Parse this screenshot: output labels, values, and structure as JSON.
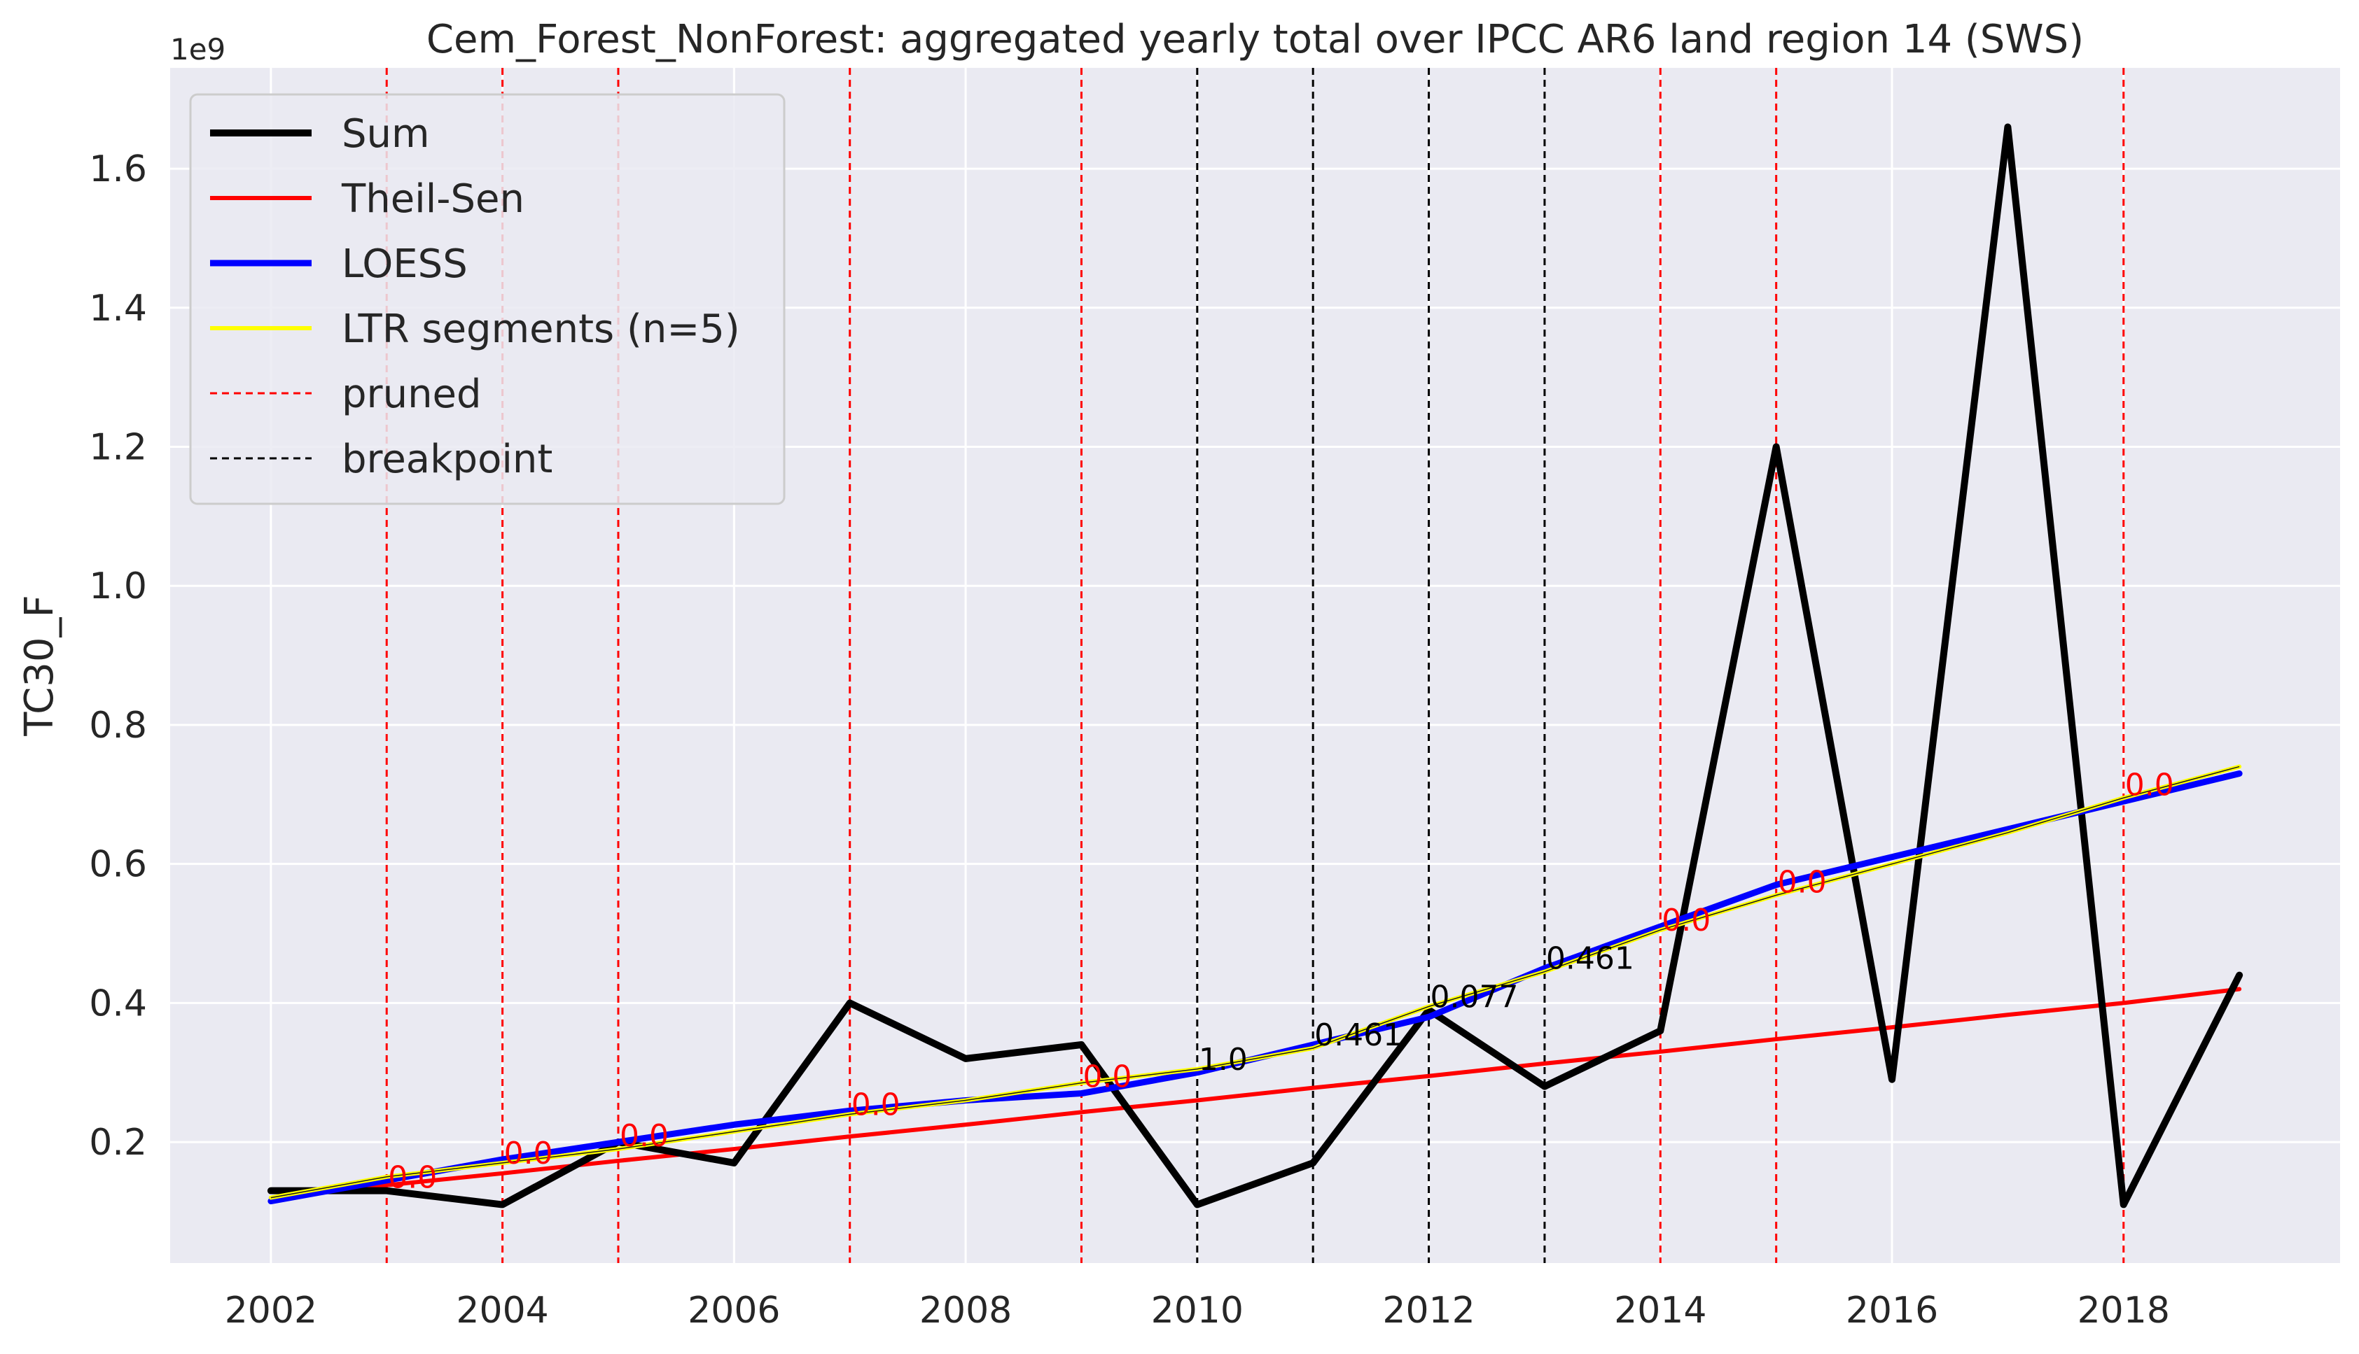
{
  "chart_data": {
    "type": "line",
    "title": "Cem_Forest_NonForest: aggregated yearly total over IPCC AR6 land region 14 (SWS)",
    "ylabel": "TC30_F",
    "xlabel": "",
    "y_offset_label": "1e9",
    "scale_factor": 1000000000.0,
    "xlim": [
      2001.13,
      2019.87
    ],
    "ylim": [
      0.026,
      1.745
    ],
    "x_ticks": [
      2002,
      2004,
      2006,
      2008,
      2010,
      2012,
      2014,
      2016,
      2018
    ],
    "x_tick_labels": [
      "2002",
      "2004",
      "2006",
      "2008",
      "2010",
      "2012",
      "2014",
      "2016",
      "2018"
    ],
    "y_ticks": [
      0.2,
      0.4,
      0.6,
      0.8,
      1.0,
      1.2,
      1.4,
      1.6
    ],
    "y_tick_labels": [
      "0.2",
      "0.4",
      "0.6",
      "0.8",
      "1.0",
      "1.2",
      "1.4",
      "1.6"
    ],
    "grid": true,
    "legend_position": "top-left",
    "colors": {
      "background": "#eaeaf2",
      "grid": "#ffffff",
      "sum": "#000000",
      "theil_sen": "#ff0000",
      "loess": "#0000ff",
      "ltr": "#ffff00",
      "pruned": "#ff0000",
      "breakpoint": "#000000"
    },
    "legend": [
      {
        "label": "Sum",
        "key": "sum",
        "style": "solid"
      },
      {
        "label": "Theil-Sen",
        "key": "theil_sen",
        "style": "solid"
      },
      {
        "label": "LOESS",
        "key": "loess",
        "style": "solid"
      },
      {
        "label": "LTR segments (n=5)",
        "key": "ltr",
        "style": "solid"
      },
      {
        "label": "pruned",
        "key": "pruned",
        "style": "dashed"
      },
      {
        "label": "breakpoint",
        "key": "breakpoint",
        "style": "dashed"
      }
    ],
    "x": [
      2002,
      2003,
      2004,
      2005,
      2006,
      2007,
      2008,
      2009,
      2010,
      2011,
      2012,
      2013,
      2014,
      2015,
      2016,
      2017,
      2018,
      2019
    ],
    "series": [
      {
        "name": "Sum",
        "key": "sum",
        "values": [
          0.13,
          0.13,
          0.11,
          0.2,
          0.17,
          0.4,
          0.32,
          0.34,
          0.11,
          0.17,
          0.39,
          0.28,
          0.36,
          1.2,
          0.29,
          1.66,
          0.11,
          0.44
        ]
      },
      {
        "name": "Theil-Sen",
        "key": "theil_sen",
        "values": [
          0.12,
          0.138,
          0.155,
          0.173,
          0.19,
          0.208,
          0.225,
          0.243,
          0.26,
          0.278,
          0.295,
          0.313,
          0.33,
          0.348,
          0.365,
          0.383,
          0.4,
          0.42
        ]
      },
      {
        "name": "LOESS",
        "key": "loess",
        "values": [
          0.115,
          0.145,
          0.175,
          0.2,
          0.225,
          0.245,
          0.26,
          0.27,
          0.3,
          0.34,
          0.38,
          0.45,
          0.51,
          0.57,
          0.61,
          0.65,
          0.69,
          0.73
        ]
      },
      {
        "name": "LTR segments (n=5)",
        "key": "ltr",
        "values": [
          0.12,
          0.15,
          0.17,
          0.19,
          0.215,
          0.24,
          0.26,
          0.285,
          0.305,
          0.335,
          0.395,
          0.445,
          0.505,
          0.555,
          0.6,
          0.645,
          0.695,
          0.74
        ]
      }
    ],
    "vertical_markers": [
      {
        "x": 2003,
        "kind": "pruned",
        "label": "0.0",
        "label_y": 0.13
      },
      {
        "x": 2004,
        "kind": "pruned",
        "label": "0.0",
        "label_y": 0.165
      },
      {
        "x": 2005,
        "kind": "pruned",
        "label": "0.0",
        "label_y": 0.19
      },
      {
        "x": 2007,
        "kind": "pruned",
        "label": "0.0",
        "label_y": 0.235
      },
      {
        "x": 2009,
        "kind": "pruned",
        "label": "0.0",
        "label_y": 0.275
      },
      {
        "x": 2010,
        "kind": "breakpoint",
        "label": "1.0",
        "label_y": 0.3
      },
      {
        "x": 2011,
        "kind": "breakpoint",
        "label": "0.461",
        "label_y": 0.335
      },
      {
        "x": 2012,
        "kind": "breakpoint",
        "label": "0.077",
        "label_y": 0.39
      },
      {
        "x": 2013,
        "kind": "breakpoint",
        "label": "0.461",
        "label_y": 0.445
      },
      {
        "x": 2014,
        "kind": "pruned",
        "label": "0.0",
        "label_y": 0.5
      },
      {
        "x": 2015,
        "kind": "pruned",
        "label": "0.0",
        "label_y": 0.555
      },
      {
        "x": 2018,
        "kind": "pruned",
        "label": "0.0",
        "label_y": 0.695
      }
    ]
  }
}
